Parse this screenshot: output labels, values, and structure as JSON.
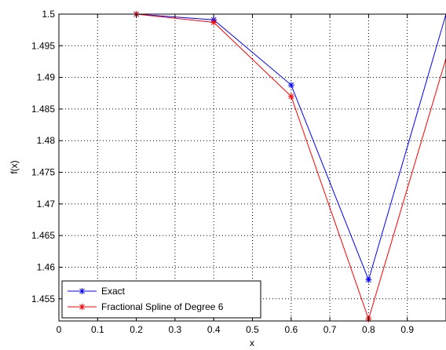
{
  "chart_data": {
    "type": "line",
    "title": "",
    "xlabel": "x",
    "ylabel": "f(x)",
    "xlim": [
      0,
      1
    ],
    "ylim": [
      1.4515,
      1.5
    ],
    "x_ticks": [
      0,
      0.1,
      0.2,
      0.3,
      0.4,
      0.5,
      0.6,
      0.7,
      0.8,
      0.9
    ],
    "x_tick_labels": [
      "0",
      "0.1",
      "0.2",
      "0.3",
      "0.4",
      "0.5",
      "0.6",
      "0.7",
      "0.8",
      "0.9"
    ],
    "y_ticks": [
      1.455,
      1.46,
      1.465,
      1.47,
      1.475,
      1.48,
      1.485,
      1.49,
      1.495,
      1.5
    ],
    "y_tick_labels": [
      "1.455",
      "1.46",
      "1.465",
      "1.47",
      "1.475",
      "1.48",
      "1.485",
      "1.49",
      "1.495",
      "1.5"
    ],
    "grid": true,
    "legend_position": "bottom-left",
    "series": [
      {
        "name": "Exact",
        "color": "#0000ff",
        "marker": "asterisk",
        "x": [
          0.2,
          0.4,
          0.6,
          0.8,
          1.0
        ],
        "y": [
          1.5,
          1.4991,
          1.4888,
          1.458,
          1.5
        ]
      },
      {
        "name": "Fractional Spline of Degree 6",
        "color": "#ff0000",
        "marker": "asterisk",
        "x": [
          0.2,
          0.4,
          0.6,
          0.8,
          1.0
        ],
        "y": [
          1.5,
          1.4987,
          1.487,
          1.4518,
          1.493
        ]
      }
    ]
  }
}
